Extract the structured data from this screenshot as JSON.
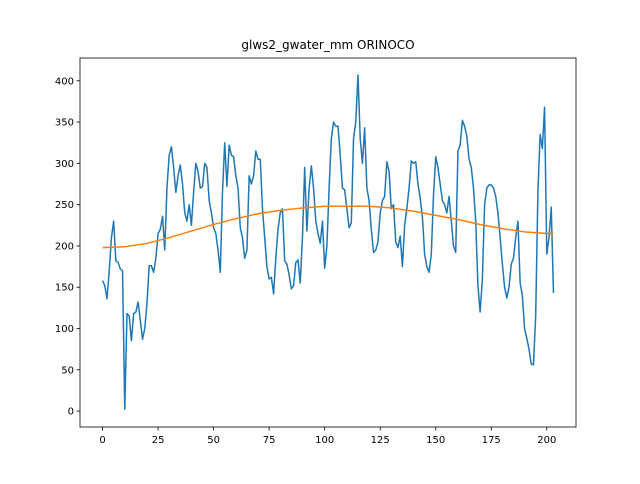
{
  "chart_data": {
    "type": "line",
    "title": "glws2_gwater_mm ORINOCO",
    "x": [
      0,
      1,
      2,
      3,
      4,
      5,
      6,
      7,
      8,
      9,
      10,
      11,
      12,
      13,
      14,
      15,
      16,
      17,
      18,
      19,
      20,
      21,
      22,
      23,
      24,
      25,
      26,
      27,
      28,
      29,
      30,
      31,
      32,
      33,
      34,
      35,
      36,
      37,
      38,
      39,
      40,
      41,
      42,
      43,
      44,
      45,
      46,
      47,
      48,
      49,
      50,
      51,
      52,
      53,
      54,
      55,
      56,
      57,
      58,
      59,
      60,
      61,
      62,
      63,
      64,
      65,
      66,
      67,
      68,
      69,
      70,
      71,
      72,
      73,
      74,
      75,
      76,
      77,
      78,
      79,
      80,
      81,
      82,
      83,
      84,
      85,
      86,
      87,
      88,
      89,
      90,
      91,
      92,
      93,
      94,
      95,
      96,
      97,
      98,
      99,
      100,
      101,
      102,
      103,
      104,
      105,
      106,
      107,
      108,
      109,
      110,
      111,
      112,
      113,
      114,
      115,
      116,
      117,
      118,
      119,
      120,
      121,
      122,
      123,
      124,
      125,
      126,
      127,
      128,
      129,
      130,
      131,
      132,
      133,
      134,
      135,
      136,
      137,
      138,
      139,
      140,
      141,
      142,
      143,
      144,
      145,
      146,
      147,
      148,
      149,
      150,
      151,
      152,
      153,
      154,
      155,
      156,
      157,
      158,
      159,
      160,
      161,
      162,
      163,
      164,
      165,
      166,
      167,
      168,
      169,
      170,
      171,
      172,
      173,
      174,
      175,
      176,
      177,
      178,
      179,
      180,
      181,
      182,
      183,
      184,
      185,
      186,
      187,
      188,
      189,
      190,
      191,
      192,
      193,
      194,
      195,
      196,
      197,
      198,
      199,
      200,
      201,
      202,
      203
    ],
    "series": [
      {
        "color": "#1f77b4",
        "values": [
          158,
          152,
          136,
          170,
          210,
          230,
          182,
          180,
          172,
          170,
          2,
          118,
          115,
          85,
          118,
          120,
          132,
          110,
          87,
          100,
          130,
          176,
          176,
          168,
          185,
          215,
          220,
          236,
          195,
          270,
          310,
          320,
          295,
          265,
          285,
          298,
          275,
          240,
          230,
          250,
          225,
          265,
          300,
          290,
          270,
          272,
          300,
          295,
          255,
          240,
          222,
          215,
          195,
          168,
          265,
          325,
          272,
          322,
          310,
          308,
          285,
          270,
          222,
          210,
          185,
          195,
          285,
          275,
          285,
          315,
          305,
          305,
          245,
          210,
          175,
          160,
          162,
          142,
          185,
          220,
          240,
          245,
          182,
          178,
          165,
          148,
          152,
          180,
          183,
          155,
          210,
          295,
          218,
          270,
          297,
          270,
          230,
          215,
          203,
          230,
          173,
          200,
          270,
          330,
          350,
          345,
          345,
          310,
          270,
          268,
          245,
          222,
          228,
          330,
          350,
          407,
          330,
          300,
          343,
          270,
          255,
          220,
          192,
          195,
          205,
          240,
          255,
          260,
          302,
          290,
          245,
          250,
          205,
          198,
          212,
          175,
          225,
          245,
          270,
          303,
          300,
          302,
          275,
          258,
          235,
          190,
          175,
          168,
          190,
          262,
          308,
          295,
          275,
          255,
          250,
          240,
          260,
          230,
          200,
          192,
          315,
          322,
          352,
          345,
          333,
          305,
          295,
          270,
          230,
          152,
          120,
          160,
          250,
          270,
          274,
          274,
          270,
          260,
          240,
          210,
          178,
          150,
          137,
          150,
          178,
          185,
          210,
          230,
          155,
          140,
          100,
          88,
          75,
          57,
          56,
          115,
          265,
          335,
          318,
          368,
          190,
          210,
          247,
          143
        ]
      },
      {
        "color": "#ff7f0e",
        "x": [
          0,
          10,
          20,
          30,
          40,
          50,
          60,
          70,
          80,
          90,
          100,
          110,
          120,
          130,
          140,
          150,
          160,
          170,
          180,
          190,
          200,
          203
        ],
        "values": [
          198,
          199,
          203,
          210,
          218,
          226,
          233,
          239,
          243,
          246,
          248,
          248,
          248,
          246,
          242,
          237,
          232,
          226,
          221,
          217,
          215,
          215
        ]
      }
    ],
    "xlim": [
      -10.15,
      213.15
    ],
    "ylim": [
      -19.3,
      427.6
    ],
    "xticks": [
      0,
      25,
      50,
      75,
      100,
      125,
      150,
      175,
      200
    ],
    "yticks": [
      0,
      50,
      100,
      150,
      200,
      250,
      300,
      350,
      400
    ],
    "grid": false
  }
}
